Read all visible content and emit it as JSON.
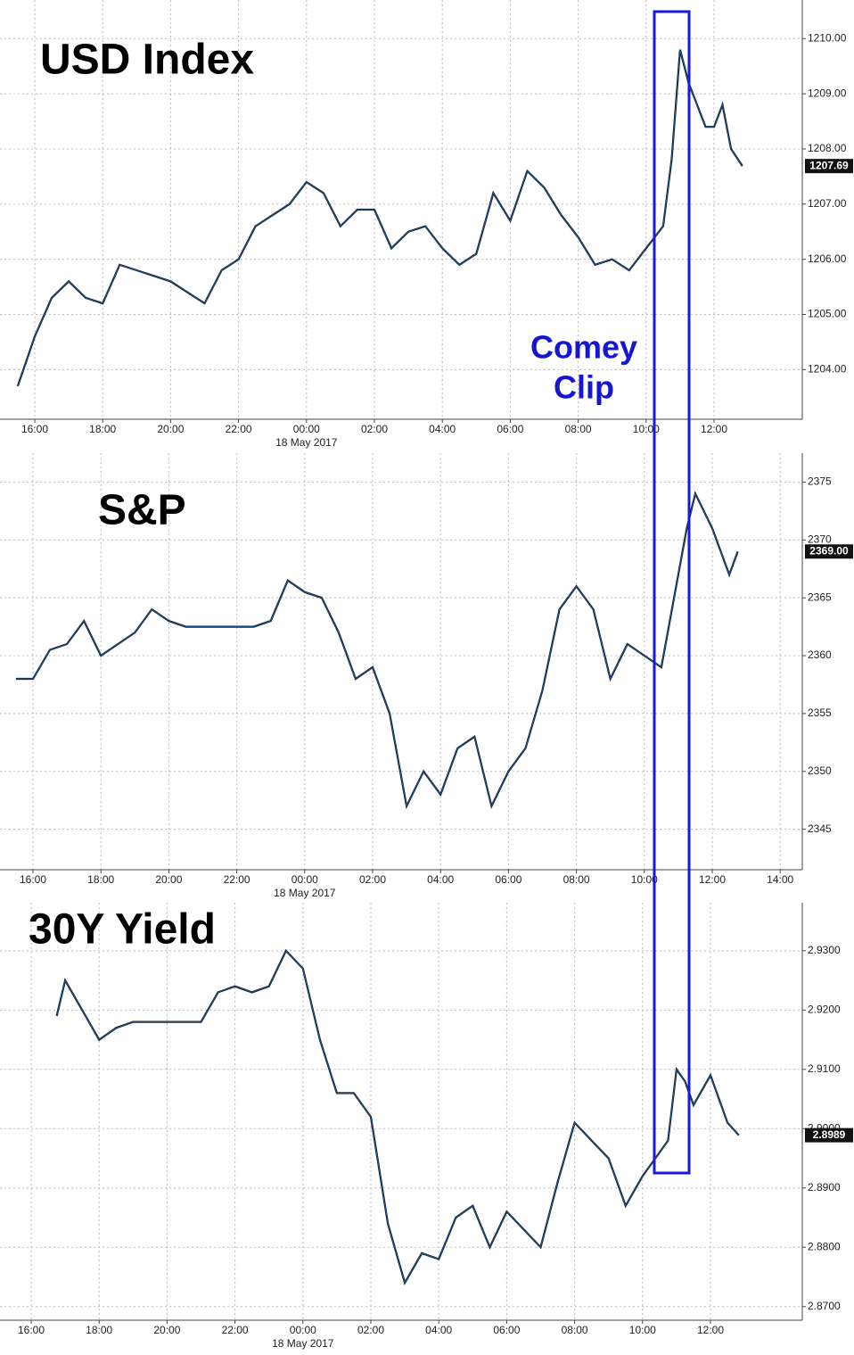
{
  "chart_data": [
    {
      "type": "line",
      "title": "USD Index",
      "color": "#1b4f8c",
      "grid": true,
      "annotation": [
        "Comey",
        "Clip"
      ],
      "x": [
        "15:30",
        "16:00",
        "16:30",
        "17:00",
        "17:30",
        "18:00",
        "18:30",
        "19:00",
        "19:30",
        "20:00",
        "20:30",
        "21:00",
        "21:30",
        "22:00",
        "22:30",
        "23:00",
        "23:30",
        "00:00",
        "00:30",
        "01:00",
        "01:30",
        "02:00",
        "02:30",
        "03:00",
        "03:30",
        "04:00",
        "04:30",
        "05:00",
        "05:30",
        "06:00",
        "06:30",
        "07:00",
        "07:30",
        "08:00",
        "08:30",
        "09:00",
        "09:30",
        "10:00",
        "10:30",
        "10:45",
        "11:00",
        "11:15",
        "11:30",
        "11:45",
        "12:00",
        "12:15",
        "12:30",
        "12:50"
      ],
      "values": [
        1203.7,
        1204.6,
        1205.3,
        1205.6,
        1205.3,
        1205.2,
        1205.9,
        1205.8,
        1205.7,
        1205.6,
        1205.4,
        1205.2,
        1205.8,
        1206.0,
        1206.6,
        1206.8,
        1207.0,
        1207.4,
        1207.2,
        1206.6,
        1206.9,
        1206.9,
        1206.2,
        1206.5,
        1206.6,
        1206.2,
        1205.9,
        1206.1,
        1207.2,
        1206.7,
        1207.6,
        1207.3,
        1206.8,
        1206.4,
        1205.9,
        1206.0,
        1205.8,
        1206.2,
        1206.6,
        1207.8,
        1209.8,
        1209.2,
        1208.8,
        1208.4,
        1208.4,
        1208.8,
        1208.0,
        1207.69
      ],
      "last_value": {
        "value": 1207.69,
        "label": "1207.69"
      },
      "ylim": [
        1203.1,
        1210.7
      ],
      "yticks": [
        {
          "value": 1204,
          "label": "1204.00"
        },
        {
          "value": 1205,
          "label": "1205.00"
        },
        {
          "value": 1206,
          "label": "1206.00"
        },
        {
          "value": 1207,
          "label": "1207.00"
        },
        {
          "value": 1208,
          "label": "1208.00"
        },
        {
          "value": 1209,
          "label": "1209.00"
        },
        {
          "value": 1210,
          "label": "1210.00"
        }
      ],
      "xticks": [
        "16:00",
        "18:00",
        "20:00",
        "22:00",
        "00:00",
        "02:00",
        "04:00",
        "06:00",
        "08:00",
        "10:00",
        "12:00"
      ],
      "xlabel": "18 May 2017"
    },
    {
      "type": "line",
      "title": "S&P",
      "color": "#1b4f8c",
      "grid": true,
      "x": [
        "15:30",
        "16:00",
        "16:30",
        "17:00",
        "17:30",
        "18:00",
        "18:30",
        "19:00",
        "19:30",
        "20:00",
        "20:30",
        "21:00",
        "21:30",
        "22:00",
        "22:30",
        "23:00",
        "23:30",
        "00:00",
        "00:30",
        "01:00",
        "01:30",
        "02:00",
        "02:30",
        "03:00",
        "03:30",
        "04:00",
        "04:30",
        "05:00",
        "05:30",
        "06:00",
        "06:30",
        "07:00",
        "07:30",
        "08:00",
        "08:30",
        "09:00",
        "09:30",
        "10:00",
        "10:30",
        "11:00",
        "11:15",
        "11:30",
        "12:00",
        "12:30",
        "12:45"
      ],
      "values": [
        2358,
        2358,
        2360.5,
        2361,
        2363,
        2360,
        2361,
        2362,
        2364,
        2363,
        2362.5,
        2362.5,
        2362.5,
        2362.5,
        2362.5,
        2363,
        2366.5,
        2365.5,
        2365,
        2362,
        2358,
        2359,
        2355,
        2347,
        2350,
        2348,
        2352,
        2353,
        2347,
        2350,
        2352,
        2357,
        2364,
        2366,
        2364,
        2358,
        2361,
        2360,
        2359,
        2367,
        2371,
        2374,
        2371,
        2367,
        2369
      ],
      "last_value": {
        "value": 2369.0,
        "label": "2369.00"
      },
      "ylim": [
        2341.5,
        2377.5
      ],
      "yticks": [
        2345,
        2350,
        2355,
        2360,
        2365,
        2370,
        2375
      ],
      "xticks": [
        "16:00",
        "18:00",
        "20:00",
        "22:00",
        "00:00",
        "02:00",
        "04:00",
        "06:00",
        "08:00",
        "10:00",
        "12:00",
        "14:00"
      ],
      "xlabel": "18 May 2017"
    },
    {
      "type": "line",
      "title": "30Y Yield",
      "color": "#1b4f8c",
      "grid": true,
      "x": [
        "16:45",
        "17:00",
        "17:30",
        "18:00",
        "18:30",
        "19:00",
        "19:30",
        "20:00",
        "20:30",
        "21:00",
        "21:30",
        "22:00",
        "22:30",
        "23:00",
        "23:30",
        "00:00",
        "00:30",
        "01:00",
        "01:30",
        "02:00",
        "02:30",
        "03:00",
        "03:30",
        "04:00",
        "04:30",
        "05:00",
        "05:30",
        "06:00",
        "06:30",
        "07:00",
        "07:30",
        "08:00",
        "08:30",
        "09:00",
        "09:30",
        "10:00",
        "10:30",
        "10:45",
        "11:00",
        "11:15",
        "11:30",
        "12:00",
        "12:30",
        "12:50"
      ],
      "values": [
        2.919,
        2.925,
        2.92,
        2.915,
        2.917,
        2.918,
        2.918,
        2.918,
        2.918,
        2.918,
        2.923,
        2.924,
        2.923,
        2.924,
        2.93,
        2.927,
        2.915,
        2.906,
        2.906,
        2.902,
        2.884,
        2.874,
        2.879,
        2.878,
        2.885,
        2.887,
        2.88,
        2.886,
        2.883,
        2.88,
        2.891,
        2.901,
        2.898,
        2.895,
        2.887,
        2.892,
        2.896,
        2.898,
        2.91,
        2.908,
        2.904,
        2.909,
        2.901,
        2.8989
      ],
      "last_value": {
        "value": 2.8989,
        "label": "2.8989"
      },
      "ylim": [
        2.8677,
        2.9381
      ],
      "yticks": [
        {
          "value": 2.87,
          "label": "2.8700"
        },
        {
          "value": 2.88,
          "label": "2.8800"
        },
        {
          "value": 2.89,
          "label": "2.8900"
        },
        {
          "value": 2.9,
          "label": "2.9000"
        },
        {
          "value": 2.91,
          "label": "2.9100"
        },
        {
          "value": 2.92,
          "label": "2.9200"
        },
        {
          "value": 2.93,
          "label": "2.9300"
        }
      ],
      "xticks": [
        "16:00",
        "18:00",
        "20:00",
        "22:00",
        "00:00",
        "02:00",
        "04:00",
        "06:00",
        "08:00",
        "10:00",
        "12:00"
      ],
      "xlabel": "18 May 2017"
    }
  ]
}
